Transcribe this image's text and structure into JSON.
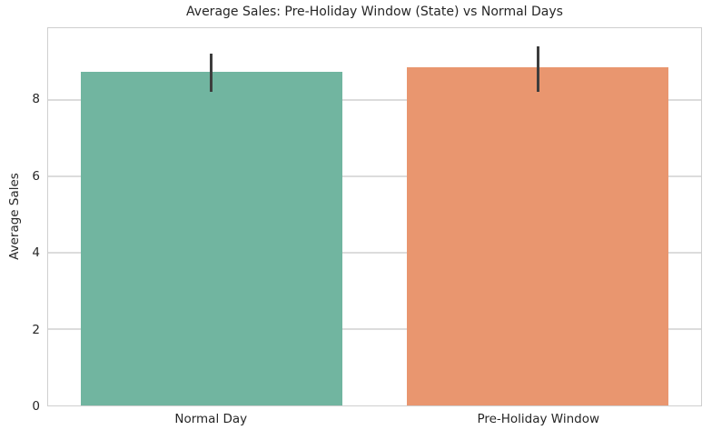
{
  "figure": {
    "title": "Average Sales: Pre-Holiday Window (State) vs Normal Days"
  },
  "chart_data": {
    "type": "bar",
    "title": "Average Sales: Pre-Holiday Window (State) vs Normal Days",
    "xlabel": "",
    "ylabel": "Average Sales",
    "categories": [
      "Normal Day",
      "Pre-Holiday Window"
    ],
    "values": [
      8.72,
      8.85
    ],
    "error_bars": [
      [
        8.2,
        9.2
      ],
      [
        8.2,
        9.4
      ]
    ],
    "bar_colors": [
      "#71b5a0",
      "#e9966f"
    ],
    "errorbar_color": "#3d3d3d",
    "yticks": [
      0,
      2,
      4,
      6,
      8
    ],
    "ylim": [
      0,
      9.87
    ],
    "grid": true,
    "legend": "none",
    "grid_color": "#dcdcdc",
    "spine_color": "#cfcfcf",
    "text_color": "#262626",
    "background_color": "#ffffff",
    "bar_width_fraction": 0.8
  }
}
